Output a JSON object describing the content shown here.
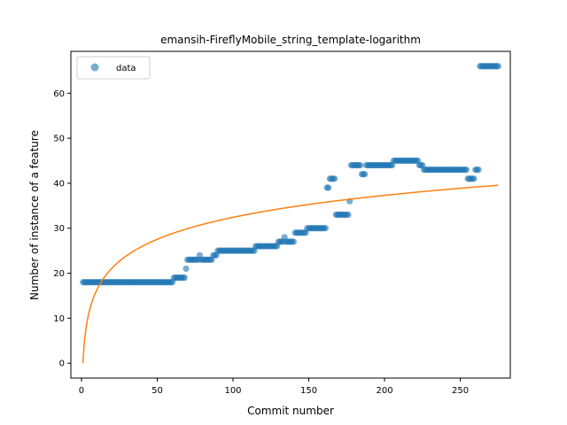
{
  "chart_data": {
    "type": "scatter",
    "title": "emansih-FireflyMobile_string_template-logarithm",
    "xlabel": "Commit number",
    "ylabel": "Number of instance of a feature",
    "xlim": [
      -7,
      283
    ],
    "ylim": [
      -3.3,
      69.3
    ],
    "xticks": [
      0,
      50,
      100,
      150,
      200,
      250
    ],
    "yticks": [
      0,
      10,
      20,
      30,
      40,
      50,
      60
    ],
    "grid": false,
    "legend": {
      "position": "top-left",
      "entries": [
        "data"
      ]
    },
    "colors": {
      "data": "#1f77b4",
      "fit": "#ff7f0e"
    },
    "series": [
      {
        "name": "data",
        "kind": "scatter",
        "segments": [
          {
            "x_start": 1,
            "x_end": 60,
            "y": 18
          },
          {
            "x_start": 61,
            "x_end": 68,
            "y": 19
          },
          {
            "x_start": 69,
            "x_end": 69,
            "y": 21
          },
          {
            "x_start": 70,
            "x_end": 77,
            "y": 23
          },
          {
            "x_start": 78,
            "x_end": 78,
            "y": 24
          },
          {
            "x_start": 79,
            "x_end": 86,
            "y": 23
          },
          {
            "x_start": 87,
            "x_end": 89,
            "y": 24
          },
          {
            "x_start": 90,
            "x_end": 114,
            "y": 25
          },
          {
            "x_start": 115,
            "x_end": 129,
            "y": 26
          },
          {
            "x_start": 130,
            "x_end": 133,
            "y": 27
          },
          {
            "x_start": 134,
            "x_end": 134,
            "y": 28
          },
          {
            "x_start": 135,
            "x_end": 140,
            "y": 27
          },
          {
            "x_start": 141,
            "x_end": 146,
            "y": 29
          },
          {
            "x_start": 147,
            "x_end": 148,
            "y": 29
          },
          {
            "x_start": 149,
            "x_end": 161,
            "y": 30
          },
          {
            "x_start": 162,
            "x_end": 163,
            "y": 39
          },
          {
            "x_start": 164,
            "x_end": 167,
            "y": 41
          },
          {
            "x_start": 168,
            "x_end": 176,
            "y": 33
          },
          {
            "x_start": 177,
            "x_end": 177,
            "y": 36
          },
          {
            "x_start": 178,
            "x_end": 184,
            "y": 44
          },
          {
            "x_start": 185,
            "x_end": 187,
            "y": 42
          },
          {
            "x_start": 188,
            "x_end": 205,
            "y": 44
          },
          {
            "x_start": 206,
            "x_end": 222,
            "y": 45
          },
          {
            "x_start": 223,
            "x_end": 225,
            "y": 44
          },
          {
            "x_start": 226,
            "x_end": 254,
            "y": 43
          },
          {
            "x_start": 255,
            "x_end": 259,
            "y": 41
          },
          {
            "x_start": 260,
            "x_end": 262,
            "y": 43
          },
          {
            "x_start": 263,
            "x_end": 275,
            "y": 66
          }
        ]
      },
      {
        "name": "",
        "kind": "line",
        "model": "logarithmic",
        "a": 0,
        "b": 7.04,
        "x_range": [
          1,
          275
        ]
      }
    ]
  }
}
